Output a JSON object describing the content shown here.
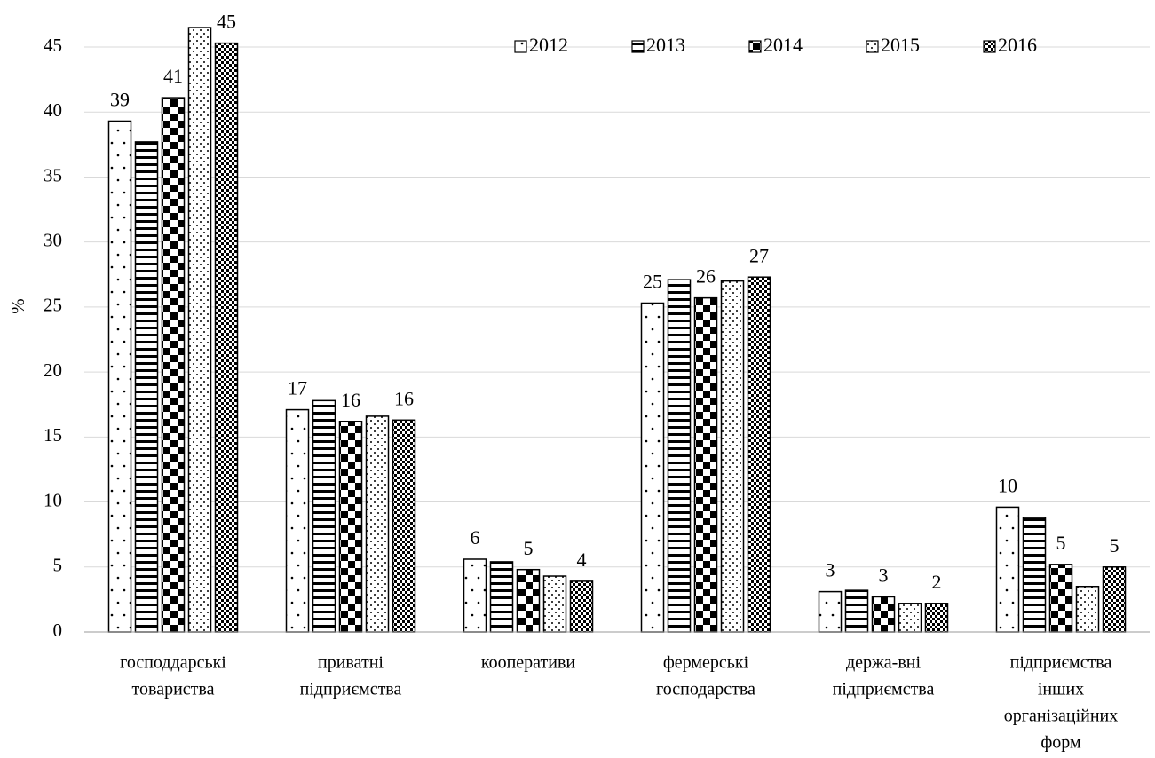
{
  "chart_data": {
    "type": "bar",
    "ylabel": "%",
    "categories": [
      [
        "господдарські",
        "товариства"
      ],
      [
        "приватні",
        "підприємства"
      ],
      [
        "кооперативи"
      ],
      [
        "фермерські",
        "господарства"
      ],
      [
        "держа-вні",
        "підприємства"
      ],
      [
        "підприємства",
        "інших",
        "організаційних",
        "форм"
      ]
    ],
    "series": [
      {
        "name": "2012",
        "color": "#000000",
        "pattern": "sparse-dots",
        "values": [
          39.3,
          17.1,
          5.6,
          25.3,
          3.1,
          9.6
        ],
        "value_labels": [
          "39",
          "17",
          "6",
          "25",
          "3",
          "10"
        ]
      },
      {
        "name": "2013",
        "color": "#000000",
        "pattern": "horizontal-stripes",
        "values": [
          37.7,
          17.8,
          5.4,
          27.1,
          3.2,
          8.8
        ]
      },
      {
        "name": "2014",
        "color": "#000000",
        "pattern": "large-checker",
        "values": [
          41.1,
          16.2,
          4.8,
          25.7,
          2.7,
          5.2
        ],
        "value_labels": [
          "41",
          "16",
          "5",
          "26",
          "3",
          "5"
        ]
      },
      {
        "name": "2015",
        "color": "#000000",
        "pattern": "dense-dots",
        "values": [
          46.5,
          16.6,
          4.3,
          27.0,
          2.2,
          3.5
        ]
      },
      {
        "name": "2016",
        "color": "#000000",
        "pattern": "fine-checker",
        "values": [
          45.3,
          16.3,
          3.9,
          27.3,
          2.2,
          5.0
        ],
        "value_labels": [
          "45",
          "16",
          "4",
          "27",
          "2",
          "5"
        ]
      }
    ],
    "ylim": [
      0,
      45
    ],
    "yticks": [
      0,
      5,
      10,
      15,
      20,
      25,
      30,
      35,
      40,
      45
    ],
    "grid": true,
    "legend": "top-right"
  }
}
